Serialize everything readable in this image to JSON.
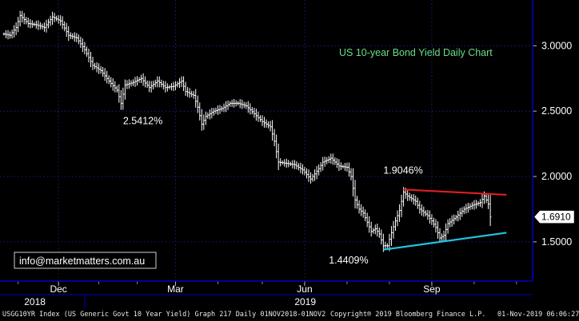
{
  "chart_data": {
    "type": "line",
    "style": "ohlc-bars",
    "title": "US 10-year Bond Yield Daily Chart",
    "watermark": "info@marketmatters.com.au",
    "y_axis": {
      "position": "right",
      "ylim": [
        1.2,
        3.35
      ],
      "ticks": [
        3.0,
        2.5,
        2.0,
        1.5
      ],
      "tick_labels": [
        "3.0000",
        "2.5000",
        "2.0000",
        "1.5000"
      ]
    },
    "x_axis": {
      "xlim": [
        0,
        258
      ],
      "month_ticks": [
        {
          "x": 27,
          "label": "Dec"
        },
        {
          "x": 85,
          "label": "Mar"
        },
        {
          "x": 149,
          "label": "Jun"
        },
        {
          "x": 212,
          "label": "Sep"
        }
      ],
      "minor_ticks": [
        7,
        47,
        66,
        106,
        128,
        170,
        191,
        233,
        254
      ],
      "year_labels": [
        {
          "x": 10,
          "label": "2018"
        },
        {
          "x": 144,
          "label": "2019"
        }
      ],
      "year_divider_x": 40
    },
    "colors": {
      "background": "#000000",
      "frame": "#0000cc",
      "grid": "#1a2a9a",
      "price": "#ffffff",
      "title": "#66dd88",
      "resistance": "#e01e1e",
      "support": "#22c4e0"
    },
    "anchors": [
      [
        0,
        3.09
      ],
      [
        3,
        3.08
      ],
      [
        6,
        3.14
      ],
      [
        8,
        3.23
      ],
      [
        12,
        3.17
      ],
      [
        16,
        3.16
      ],
      [
        20,
        3.14
      ],
      [
        24,
        3.22
      ],
      [
        28,
        3.19
      ],
      [
        32,
        3.08
      ],
      [
        36,
        3.06
      ],
      [
        40,
        2.97
      ],
      [
        44,
        2.85
      ],
      [
        48,
        2.81
      ],
      [
        52,
        2.73
      ],
      [
        56,
        2.66
      ],
      [
        58,
        2.56
      ],
      [
        60,
        2.7
      ],
      [
        64,
        2.72
      ],
      [
        68,
        2.75
      ],
      [
        72,
        2.68
      ],
      [
        76,
        2.73
      ],
      [
        80,
        2.68
      ],
      [
        84,
        2.69
      ],
      [
        88,
        2.73
      ],
      [
        90,
        2.65
      ],
      [
        94,
        2.62
      ],
      [
        96,
        2.53
      ],
      [
        98,
        2.4
      ],
      [
        100,
        2.46
      ],
      [
        104,
        2.5
      ],
      [
        108,
        2.52
      ],
      [
        112,
        2.56
      ],
      [
        116,
        2.56
      ],
      [
        120,
        2.54
      ],
      [
        124,
        2.48
      ],
      [
        128,
        2.42
      ],
      [
        132,
        2.38
      ],
      [
        134,
        2.27
      ],
      [
        136,
        2.11
      ],
      [
        140,
        2.1
      ],
      [
        144,
        2.09
      ],
      [
        148,
        2.05
      ],
      [
        152,
        1.98
      ],
      [
        156,
        2.06
      ],
      [
        158,
        2.11
      ],
      [
        162,
        2.14
      ],
      [
        166,
        2.08
      ],
      [
        170,
        2.07
      ],
      [
        172,
        2.0
      ],
      [
        174,
        1.82
      ],
      [
        176,
        1.75
      ],
      [
        178,
        1.72
      ],
      [
        180,
        1.65
      ],
      [
        182,
        1.58
      ],
      [
        184,
        1.6
      ],
      [
        186,
        1.56
      ],
      [
        188,
        1.47
      ],
      [
        190,
        1.47
      ],
      [
        192,
        1.57
      ],
      [
        194,
        1.66
      ],
      [
        196,
        1.74
      ],
      [
        198,
        1.88
      ],
      [
        200,
        1.85
      ],
      [
        204,
        1.81
      ],
      [
        206,
        1.75
      ],
      [
        210,
        1.7
      ],
      [
        212,
        1.66
      ],
      [
        214,
        1.61
      ],
      [
        216,
        1.53
      ],
      [
        218,
        1.55
      ],
      [
        220,
        1.64
      ],
      [
        224,
        1.69
      ],
      [
        228,
        1.75
      ],
      [
        232,
        1.78
      ],
      [
        236,
        1.8
      ],
      [
        238,
        1.85
      ],
      [
        240,
        1.79
      ],
      [
        241,
        1.69
      ]
    ],
    "trendlines": [
      {
        "name": "resistance",
        "x": [
          198,
          249
        ],
        "y": [
          1.9,
          1.86
        ]
      },
      {
        "name": "support",
        "x": [
          188,
          249
        ],
        "y": [
          1.44,
          1.57
        ]
      }
    ],
    "annotations": [
      {
        "label": "2.5412%",
        "x": 59,
        "y": 2.4
      },
      {
        "label": "1.9046%",
        "x": 188,
        "y": 2.02
      },
      {
        "label": "1.4409%",
        "x": 161,
        "y": 1.335
      }
    ],
    "last_value": {
      "value": 1.691,
      "label": "1.6910"
    }
  },
  "footer": {
    "left": "USGG10YR Index (US Generic Govt 10 Year Yield) Graph 217  Daily 01NOV2018-01NOV2",
    "copyright": "Copyright® 2019 Bloomberg Finance L.P.",
    "timestamp": "01-Nov-2019 06:06:27"
  }
}
